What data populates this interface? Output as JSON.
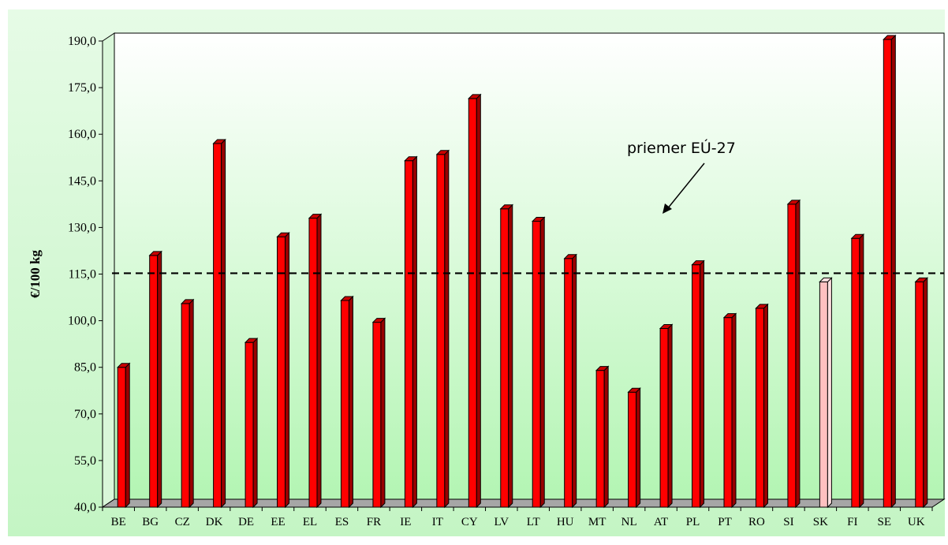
{
  "chart_data": {
    "type": "bar",
    "title": "",
    "xlabel": "",
    "ylabel": "€/100 kg",
    "ylim": [
      40,
      190
    ],
    "yticks": [
      "40,0",
      "55,0",
      "70,0",
      "85,0",
      "100,0",
      "115,0",
      "130,0",
      "145,0",
      "160,0",
      "175,0",
      "190,0"
    ],
    "ytick_values": [
      40,
      55,
      70,
      85,
      100,
      115,
      130,
      145,
      160,
      175,
      190
    ],
    "categories": [
      "BE",
      "BG",
      "CZ",
      "DK",
      "DE",
      "EE",
      "EL",
      "ES",
      "FR",
      "IE",
      "IT",
      "CY",
      "LV",
      "LT",
      "HU",
      "MT",
      "NL",
      "AT",
      "PL",
      "PT",
      "RO",
      "SI",
      "SK",
      "FI",
      "SE",
      "UK"
    ],
    "values": [
      85,
      121,
      105.5,
      157,
      93,
      127,
      133,
      106.5,
      99.5,
      151.5,
      153.5,
      171.5,
      136,
      132,
      120,
      84,
      77,
      97.5,
      118,
      101,
      104,
      137.5,
      112.5,
      126.5,
      190.5,
      112.5
    ],
    "highlight_category": "SK",
    "reference_line": {
      "label": "priemer EÚ-27",
      "value": 114,
      "style": "dashed"
    },
    "grid": false,
    "legend": "none",
    "colors": {
      "bar": "#ff0000",
      "bar_side": "#990000",
      "bar_top": "#cc0000",
      "highlight": "#ffc0c0",
      "highlight_side": "#ffe0e0",
      "floor": "#a6a6a6",
      "background_top": "#ffffff",
      "background_bottom": "#b3f5b3"
    }
  }
}
